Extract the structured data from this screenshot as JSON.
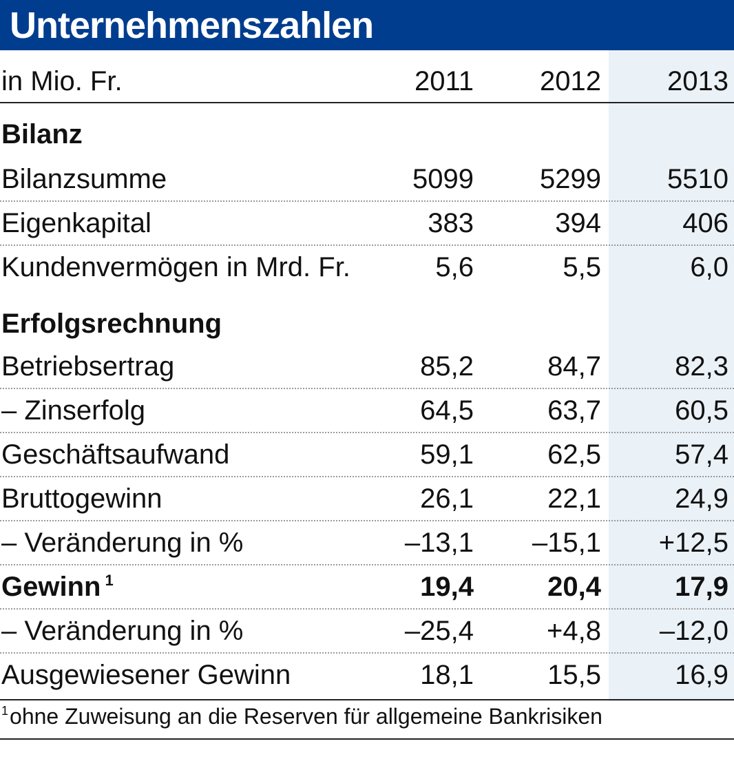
{
  "title": "Unternehmenszahlen",
  "header_row": {
    "label": "in Mio. Fr.",
    "years": [
      "2011",
      "2012",
      "2013"
    ]
  },
  "sections": {
    "bilanz": "Bilanz",
    "erfolgsrechnung": "Erfolgsrechnung"
  },
  "rows": [
    {
      "label": "Bilanzsumme",
      "values": [
        "5099",
        "5299",
        "5510"
      ]
    },
    {
      "label": "Eigenkapital",
      "values": [
        "383",
        "394",
        "406"
      ]
    },
    {
      "label": "Kundenvermögen in Mrd. Fr.",
      "values": [
        "5,6",
        "5,5",
        "6,0"
      ]
    },
    {
      "label": "Betriebsertrag",
      "values": [
        "85,2",
        "84,7",
        "82,3"
      ]
    },
    {
      "label": "– Zinserfolg",
      "values": [
        "64,5",
        "63,7",
        "60,5"
      ]
    },
    {
      "label": "Geschäftsaufwand",
      "values": [
        "59,1",
        "62,5",
        "57,4"
      ]
    },
    {
      "label": "Bruttogewinn",
      "values": [
        "26,1",
        "22,1",
        "24,9"
      ]
    },
    {
      "label": "– Veränderung in %",
      "values": [
        "–13,1",
        "–15,1",
        "+12,5"
      ]
    },
    {
      "label": "Gewinn",
      "footnote_mark": "1",
      "values": [
        "19,4",
        "20,4",
        "17,9"
      ]
    },
    {
      "label": "– Veränderung in %",
      "values": [
        "–25,4",
        "+4,8",
        "–12,0"
      ]
    },
    {
      "label": "Ausgewiesener Gewinn",
      "values": [
        "18,1",
        "15,5",
        "16,9"
      ]
    }
  ],
  "footnote": {
    "mark": "1",
    "text": "ohne Zuweisung an die Reserven für allgemeine Bankrisiken"
  },
  "colors": {
    "header_bg": "#003d8f",
    "header_text": "#ffffff",
    "highlight_column": "#eaf1f7"
  }
}
